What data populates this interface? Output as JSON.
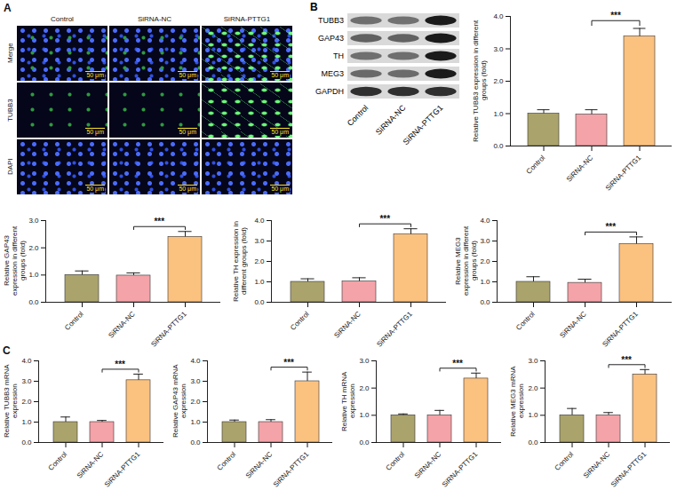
{
  "panel_A": {
    "letter": "A",
    "columns": [
      "Control",
      "SiRNA-NC",
      "SiRNA-PTTG1"
    ],
    "rows": [
      "Merge",
      "TUBB3",
      "DAPI"
    ],
    "scale_bar": "50 μm"
  },
  "panel_B_blot": {
    "proteins": [
      "TUBB3",
      "GAP43",
      "TH",
      "MEG3",
      "GAPDH"
    ],
    "lanes": [
      "Control",
      "SiRNA-NC",
      "SiRNA-PTTG1"
    ]
  },
  "chart_data": [
    {
      "type": "bar",
      "panel": "B",
      "categories": [
        "Control",
        "SiRNA-NC",
        "SiRNA-PTTG1"
      ],
      "values": [
        1.0,
        0.97,
        3.38
      ],
      "errors": [
        0.12,
        0.15,
        0.25
      ],
      "colors": [
        "#aba36c",
        "#f4a3a8",
        "#fbc17f"
      ],
      "ylabel": "Relative TUBB3 expression in different groups (fold)",
      "ylim": [
        0,
        4
      ],
      "yticks": [
        0,
        1,
        2,
        3,
        4
      ],
      "annotations": [
        {
          "from": "SiRNA-NC",
          "to": "SiRNA-PTTG1",
          "text": "***"
        }
      ]
    },
    {
      "type": "bar",
      "panel": "B",
      "categories": [
        "Control",
        "SiRNA-NC",
        "SiRNA-PTTG1"
      ],
      "values": [
        1.0,
        0.98,
        2.4
      ],
      "errors": [
        0.15,
        0.1,
        0.2
      ],
      "colors": [
        "#aba36c",
        "#f4a3a8",
        "#fbc17f"
      ],
      "ylabel": "Relative GAP43 expression in different groups (fold)",
      "ylim": [
        0,
        3
      ],
      "yticks": [
        0,
        1,
        2,
        3
      ],
      "annotations": [
        {
          "from": "SiRNA-NC",
          "to": "SiRNA-PTTG1",
          "text": "***"
        }
      ]
    },
    {
      "type": "bar",
      "panel": "B",
      "categories": [
        "Control",
        "SiRNA-NC",
        "SiRNA-PTTG1"
      ],
      "values": [
        1.0,
        1.02,
        3.32
      ],
      "errors": [
        0.15,
        0.18,
        0.28
      ],
      "colors": [
        "#aba36c",
        "#f4a3a8",
        "#fbc17f"
      ],
      "ylabel": "Relative TH expression in different groups (fold)",
      "ylim": [
        0,
        4
      ],
      "yticks": [
        0,
        1,
        2,
        3,
        4
      ],
      "annotations": [
        {
          "from": "SiRNA-NC",
          "to": "SiRNA-PTTG1",
          "text": "***"
        }
      ]
    },
    {
      "type": "bar",
      "panel": "B",
      "categories": [
        "Control",
        "SiRNA-NC",
        "SiRNA-PTTG1"
      ],
      "values": [
        1.0,
        0.95,
        2.85
      ],
      "errors": [
        0.25,
        0.18,
        0.35
      ],
      "colors": [
        "#aba36c",
        "#f4a3a8",
        "#fbc17f"
      ],
      "ylabel": "Relative MEG3 expression in different groups (fold)",
      "ylim": [
        0,
        4
      ],
      "yticks": [
        0,
        1,
        2,
        3,
        4
      ],
      "annotations": [
        {
          "from": "SiRNA-NC",
          "to": "SiRNA-PTTG1",
          "text": "***"
        }
      ]
    },
    {
      "type": "bar",
      "panel": "C",
      "categories": [
        "Control",
        "SiRNA-NC",
        "SiRNA-PTTG1"
      ],
      "values": [
        1.0,
        1.0,
        3.05
      ],
      "errors": [
        0.25,
        0.08,
        0.3
      ],
      "colors": [
        "#aba36c",
        "#f4a3a8",
        "#fbc17f"
      ],
      "ylabel": "Relative TUBB3 mRNA expression",
      "ylim": [
        0,
        4
      ],
      "yticks": [
        0,
        1,
        2,
        3,
        4
      ],
      "annotations": [
        {
          "from": "SiRNA-NC",
          "to": "SiRNA-PTTG1",
          "text": "***"
        }
      ]
    },
    {
      "type": "bar",
      "panel": "C",
      "categories": [
        "Control",
        "SiRNA-NC",
        "SiRNA-PTTG1"
      ],
      "values": [
        1.0,
        1.0,
        3.0
      ],
      "errors": [
        0.1,
        0.12,
        0.45
      ],
      "colors": [
        "#aba36c",
        "#f4a3a8",
        "#fbc17f"
      ],
      "ylabel": "Relative GAP43 mRNA expression",
      "ylim": [
        0,
        4
      ],
      "yticks": [
        0,
        1,
        2,
        3,
        4
      ],
      "annotations": [
        {
          "from": "SiRNA-NC",
          "to": "SiRNA-PTTG1",
          "text": "***"
        }
      ]
    },
    {
      "type": "bar",
      "panel": "C",
      "categories": [
        "Control",
        "SiRNA-NC",
        "SiRNA-PTTG1"
      ],
      "values": [
        1.0,
        1.0,
        2.35
      ],
      "errors": [
        0.05,
        0.18,
        0.2
      ],
      "colors": [
        "#aba36c",
        "#f4a3a8",
        "#fbc17f"
      ],
      "ylabel": "Relative TH mRNA expression",
      "ylim": [
        0,
        3
      ],
      "yticks": [
        0,
        1,
        2,
        3
      ],
      "annotations": [
        {
          "from": "SiRNA-NC",
          "to": "SiRNA-PTTG1",
          "text": "***"
        }
      ]
    },
    {
      "type": "bar",
      "panel": "C",
      "categories": [
        "Control",
        "SiRNA-NC",
        "SiRNA-PTTG1"
      ],
      "values": [
        1.0,
        1.0,
        2.5
      ],
      "errors": [
        0.25,
        0.1,
        0.18
      ],
      "colors": [
        "#aba36c",
        "#f4a3a8",
        "#fbc17f"
      ],
      "ylabel": "Relative MEG3 mRNA expression",
      "ylim": [
        0,
        3
      ],
      "yticks": [
        0,
        1,
        2,
        3
      ],
      "annotations": [
        {
          "from": "SiRNA-NC",
          "to": "SiRNA-PTTG1",
          "text": "***"
        }
      ]
    }
  ]
}
